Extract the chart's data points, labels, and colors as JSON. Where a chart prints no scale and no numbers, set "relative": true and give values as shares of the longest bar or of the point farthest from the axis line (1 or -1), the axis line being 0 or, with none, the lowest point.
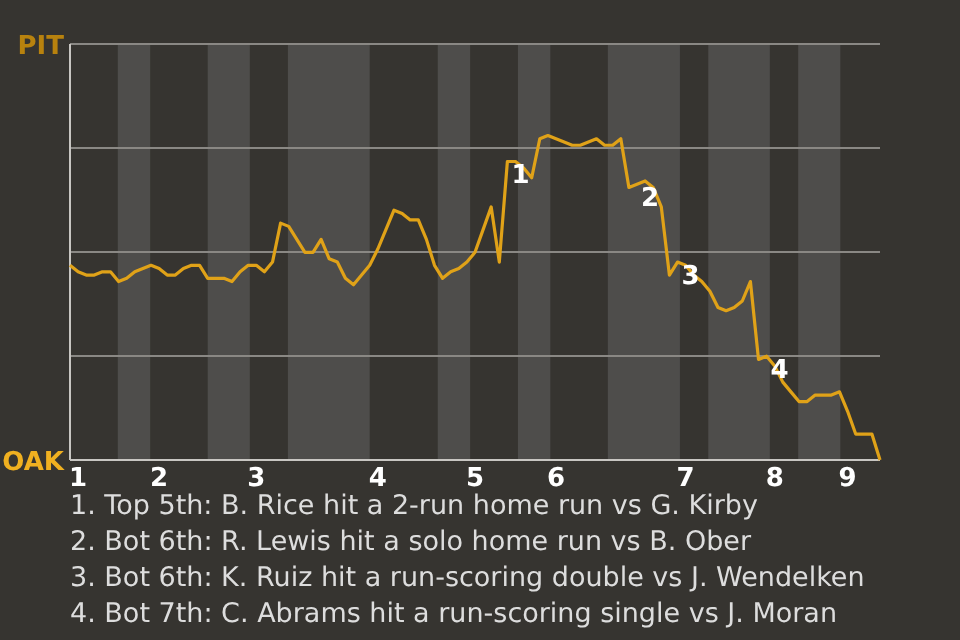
{
  "chart_data": {
    "type": "line",
    "relative": true,
    "categories": [
      null,
      "1",
      null,
      null,
      null,
      null,
      null,
      null,
      null,
      null,
      null,
      "2",
      null,
      null,
      null,
      null,
      null,
      null,
      null,
      null,
      null,
      null,
      null,
      "3",
      null,
      null,
      null,
      null,
      null,
      null,
      null,
      null,
      null,
      null,
      null,
      null,
      null,
      null,
      "4",
      null,
      null,
      null,
      null,
      null,
      null,
      null,
      null,
      null,
      null,
      null,
      "5",
      null,
      null,
      null,
      null,
      null,
      null,
      null,
      null,
      null,
      "6",
      null,
      null,
      null,
      null,
      null,
      null,
      null,
      null,
      null,
      null,
      null,
      null,
      null,
      null,
      null,
      "7",
      null,
      null,
      null,
      null,
      null,
      null,
      null,
      null,
      null,
      null,
      "8",
      null,
      null,
      null,
      null,
      null,
      null,
      null,
      null,
      "9",
      null,
      null,
      null,
      null
    ],
    "series": [
      {
        "color": "#e0a218",
        "values": [
          0.6,
          0.58,
          0.57,
          0.57,
          0.58,
          0.58,
          0.55,
          0.56,
          0.58,
          0.59,
          0.6,
          0.59,
          0.57,
          0.57,
          0.59,
          0.6,
          0.6,
          0.56,
          0.56,
          0.56,
          0.55,
          0.58,
          0.6,
          0.6,
          0.58,
          0.61,
          0.73,
          0.72,
          0.68,
          0.64,
          0.64,
          0.68,
          0.62,
          0.61,
          0.56,
          0.54,
          0.57,
          0.6,
          0.65,
          0.71,
          0.77,
          0.76,
          0.74,
          0.74,
          0.68,
          0.6,
          0.56,
          0.58,
          0.59,
          0.61,
          0.64,
          0.71,
          0.78,
          0.61,
          0.92,
          0.92,
          0.9,
          0.87,
          0.99,
          1,
          0.99,
          0.98,
          0.97,
          0.97,
          0.98,
          0.99,
          0.97,
          0.97,
          0.99,
          0.84,
          0.85,
          0.86,
          0.84,
          0.78,
          0.57,
          0.61,
          0.6,
          0.57,
          0.55,
          0.52,
          0.47,
          0.46,
          0.47,
          0.49,
          0.55,
          0.31,
          0.32,
          0.29,
          0.24,
          0.21,
          0.18,
          0.18,
          0.2,
          0.2,
          0.2,
          0.21,
          0.15,
          0.08,
          0.08,
          0.08,
          0
        ],
        "name": null
      }
    ],
    "grid": "y",
    "annotations": [
      "PIT",
      "OAK",
      {
        "text": "1",
        "y": 0.92
      },
      {
        "text": "2",
        "y": 0.85
      },
      {
        "text": "3",
        "y": 0.61
      },
      {
        "text": "4",
        "y": 0.32
      },
      "1. Top 5th: B. Rice hit a 2-run home run vs G. Kirby",
      "2. Bot 6th: R. Lewis hit a solo home run vs B. Ober",
      "3. Bot 6th: K. Ruiz hit a run-scoring double vs J. Wendelken",
      "4. Bot 7th: C. Abrams hit a run-scoring single vs J. Moran"
    ],
    "marker": "none",
    "line_style": "solid"
  }
}
